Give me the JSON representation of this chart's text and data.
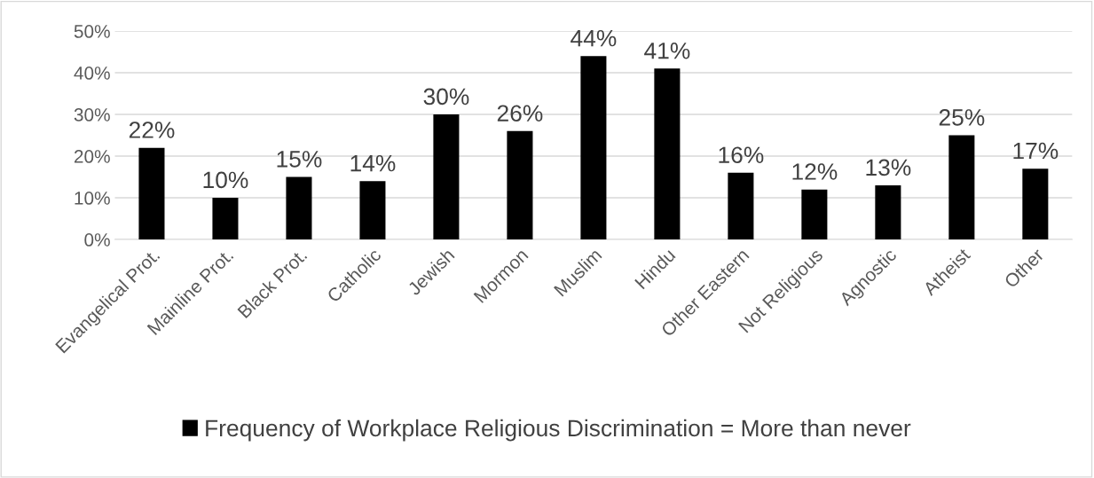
{
  "chart_data": {
    "type": "bar",
    "categories": [
      "Evangelical Prot.",
      "Mainline Prot.",
      "Black Prot.",
      "Catholic",
      "Jewish",
      "Mormon",
      "Muslim",
      "Hindu",
      "Other Eastern",
      "Not Religious",
      "Agnostic",
      "Atheist",
      "Other"
    ],
    "series": [
      {
        "name": "Frequency of Workplace Religious Discrimination = More than never",
        "color": "#000000",
        "values": [
          22,
          10,
          15,
          14,
          30,
          26,
          44,
          41,
          16,
          12,
          13,
          25,
          17
        ],
        "value_labels": [
          "22%",
          "10%",
          "15%",
          "14%",
          "30%",
          "26%",
          "44%",
          "41%",
          "16%",
          "12%",
          "13%",
          "25%",
          "17%"
        ]
      }
    ],
    "ylim": [
      0,
      50
    ],
    "yticks": [
      {
        "value": 0,
        "label": "0%"
      },
      {
        "value": 10,
        "label": "10%"
      },
      {
        "value": 20,
        "label": "20%"
      },
      {
        "value": 30,
        "label": "30%"
      },
      {
        "value": 40,
        "label": "40%"
      },
      {
        "value": 50,
        "label": "50%"
      }
    ],
    "grid": "y",
    "legend": "bottom"
  }
}
